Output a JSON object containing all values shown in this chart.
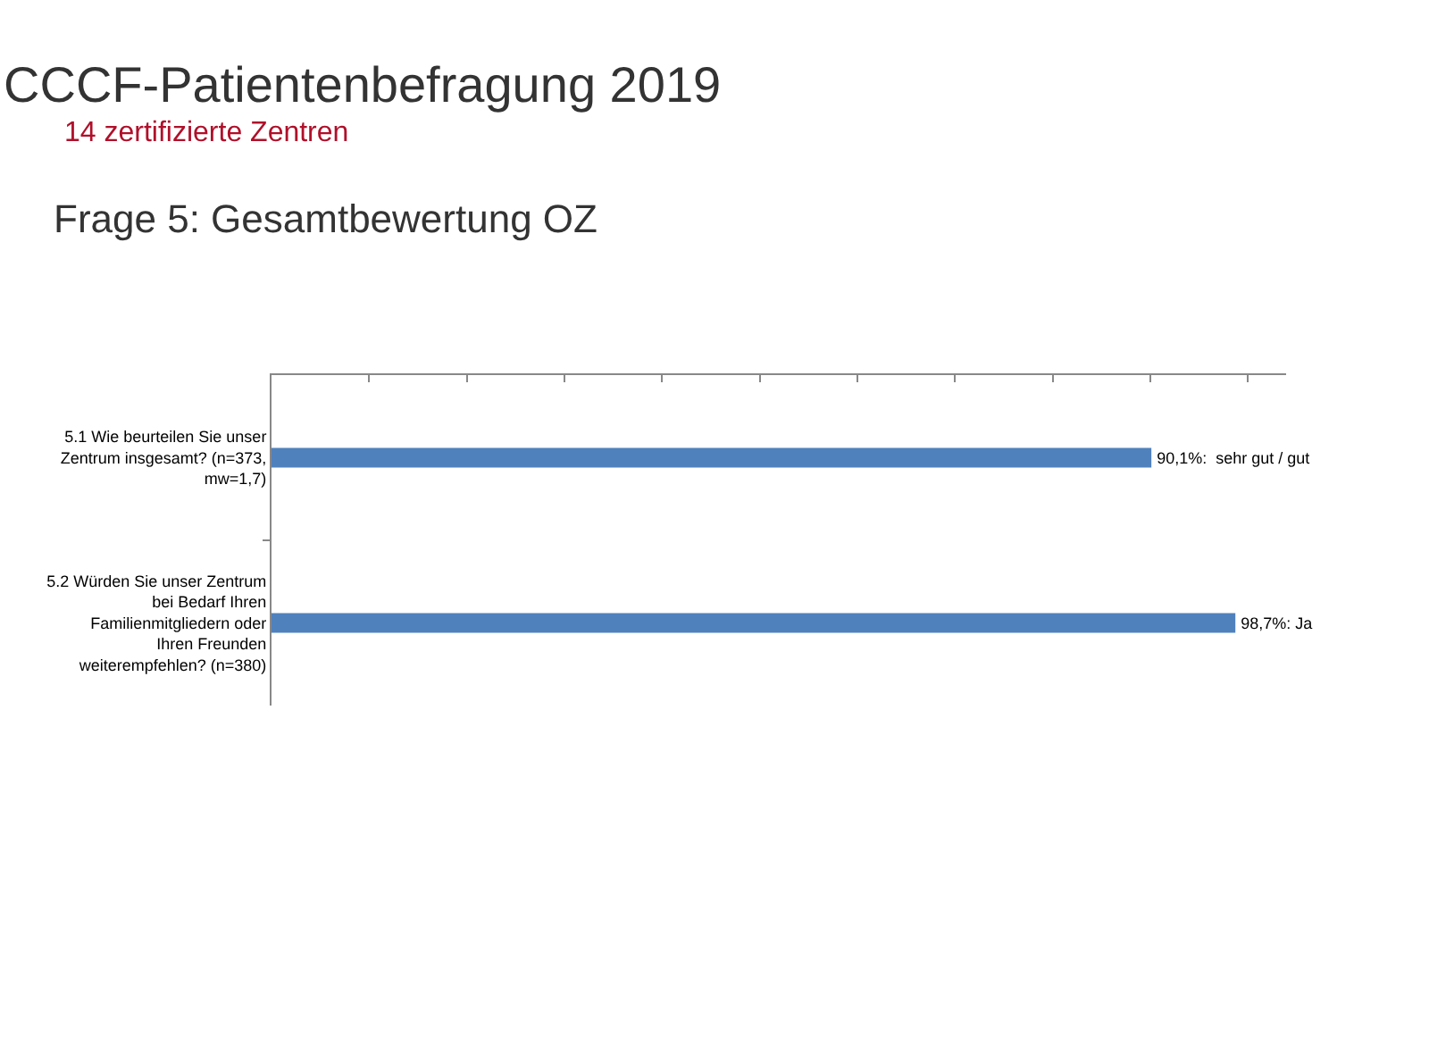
{
  "chart_data": {
    "type": "bar",
    "orientation": "horizontal",
    "title": "CCCF-Patientenbefragung 2019",
    "subtitle": "14 zertifizierte Zentren",
    "annotations": [
      "Frage 5: Gesamtbewertung OZ"
    ],
    "categories": [
      "5.1 Wie beurteilen Sie unser Zentrum insgesamt? (n=373, mw=1,7)",
      "5.2 Würden Sie unser Zentrum bei Bedarf Ihren Familienmitgliedern oder Ihren Freunden weiterempfehlen? (n=380)"
    ],
    "values": [
      90.1,
      98.7
    ],
    "value_labels": [
      "90,1%:  sehr gut / gut",
      "98,7%: Ja"
    ],
    "color": "#4f81bd",
    "tick_labels": "y"
  }
}
